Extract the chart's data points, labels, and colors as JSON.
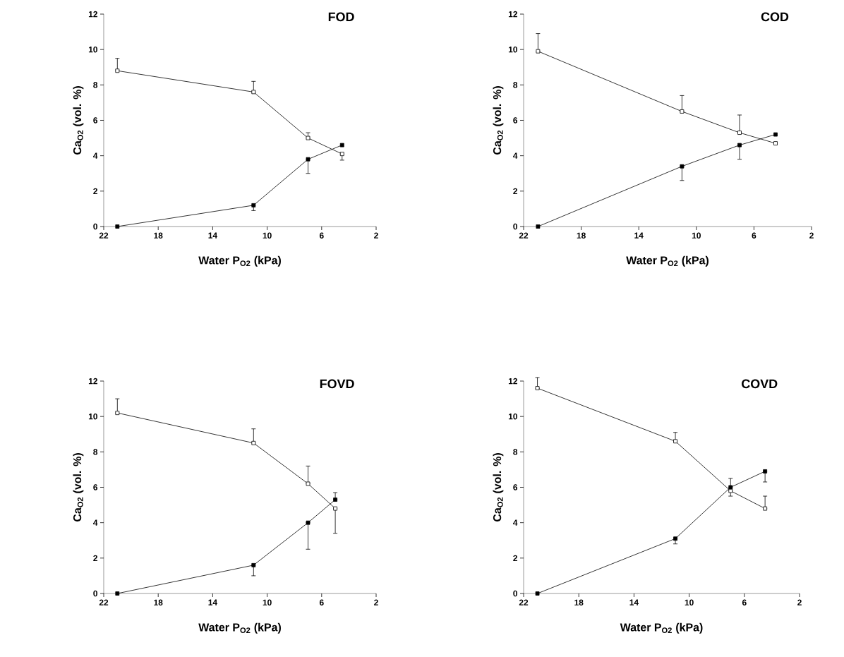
{
  "chart_data": [
    {
      "type": "line",
      "title": "FOD",
      "xlabel": "Water P$_{O2}$ (kPa)",
      "ylabel": "Ca$_{O2}$ (vol. %)",
      "xlim": [
        22,
        2
      ],
      "xticks": [
        22,
        18,
        14,
        10,
        6,
        2
      ],
      "ylim": [
        0,
        12
      ],
      "yticks": [
        0,
        2,
        4,
        6,
        8,
        10,
        12
      ],
      "marker": "square",
      "series": [
        {
          "color": "#000000",
          "x": [
            21,
            11,
            7,
            4.5
          ],
          "values": [
            8.8,
            7.6,
            5.0,
            4.1
          ],
          "errors": [
            [
              8.8,
              9.5
            ],
            [
              7.6,
              8.2
            ],
            [
              5.0,
              5.3
            ],
            [
              3.75,
              4.1
            ]
          ]
        },
        {
          "color": "#000000",
          "x": [
            21,
            11,
            7,
            4.5
          ],
          "values": [
            0,
            1.2,
            3.8,
            4.6
          ],
          "errors": [
            null,
            [
              0.9,
              1.2
            ],
            [
              3.0,
              3.8
            ],
            null
          ]
        }
      ]
    },
    {
      "type": "line",
      "title": "COD",
      "xlabel": "Water P$_{O2}$ (kPa)",
      "ylabel": "Ca$_{O2}$ (vol. %)",
      "xlim": [
        22,
        2
      ],
      "xticks": [
        22,
        18,
        14,
        10,
        6,
        2
      ],
      "ylim": [
        0,
        12
      ],
      "yticks": [
        0,
        2,
        4,
        6,
        8,
        10,
        12
      ],
      "marker": "square",
      "series": [
        {
          "color": "#000000",
          "x": [
            21,
            11,
            7,
            4.5
          ],
          "values": [
            9.9,
            6.5,
            5.3,
            4.7
          ],
          "errors": [
            [
              9.9,
              10.9
            ],
            [
              6.5,
              7.4
            ],
            [
              5.3,
              6.3
            ],
            null
          ]
        },
        {
          "color": "#000000",
          "x": [
            21,
            11,
            7,
            4.5
          ],
          "values": [
            0,
            3.4,
            4.6,
            5.2
          ],
          "errors": [
            null,
            [
              2.6,
              3.4
            ],
            [
              3.8,
              4.6
            ],
            null
          ]
        }
      ]
    },
    {
      "type": "line",
      "title": "FOVD",
      "xlabel": "Water P$_{O2}$ (kPa)",
      "ylabel": "Ca$_{O2}$ (vol. %)",
      "xlim": [
        22,
        2
      ],
      "xticks": [
        22,
        18,
        14,
        10,
        6,
        2
      ],
      "ylim": [
        0,
        12
      ],
      "yticks": [
        0,
        2,
        4,
        6,
        8,
        10,
        12
      ],
      "marker": "square",
      "series": [
        {
          "color": "#000000",
          "x": [
            21,
            11,
            7,
            5
          ],
          "values": [
            10.2,
            8.5,
            6.2,
            4.8
          ],
          "errors": [
            [
              10.2,
              11.0
            ],
            [
              8.5,
              9.3
            ],
            [
              6.2,
              7.2
            ],
            [
              3.4,
              4.8
            ]
          ]
        },
        {
          "color": "#000000",
          "x": [
            21,
            11,
            7,
            5
          ],
          "values": [
            0,
            1.6,
            4.0,
            5.3
          ],
          "errors": [
            null,
            [
              1.0,
              1.6
            ],
            [
              2.5,
              4.0
            ],
            [
              5.3,
              5.7
            ]
          ]
        }
      ]
    },
    {
      "type": "line",
      "title": "COVD",
      "xlabel": "Water P$_{O2}$ (kPa)",
      "ylabel": "Ca$_{O2}$ (vol. %)",
      "xlim": [
        22,
        2
      ],
      "xticks": [
        22,
        18,
        14,
        10,
        6,
        2
      ],
      "ylim": [
        0,
        12
      ],
      "yticks": [
        0,
        2,
        4,
        6,
        8,
        10,
        12
      ],
      "marker": "square",
      "series": [
        {
          "color": "#000000",
          "x": [
            21,
            11,
            7,
            4.5
          ],
          "values": [
            11.6,
            8.6,
            5.8,
            4.8
          ],
          "errors": [
            [
              11.6,
              12.2
            ],
            [
              8.6,
              9.1
            ],
            [
              5.5,
              5.8
            ],
            [
              4.8,
              5.5
            ]
          ]
        },
        {
          "color": "#000000",
          "x": [
            21,
            11,
            7,
            4.5
          ],
          "values": [
            0,
            3.1,
            6.0,
            6.9
          ],
          "errors": [
            null,
            [
              2.8,
              3.1
            ],
            [
              6.0,
              6.5
            ],
            [
              6.3,
              6.9
            ]
          ]
        }
      ]
    }
  ]
}
